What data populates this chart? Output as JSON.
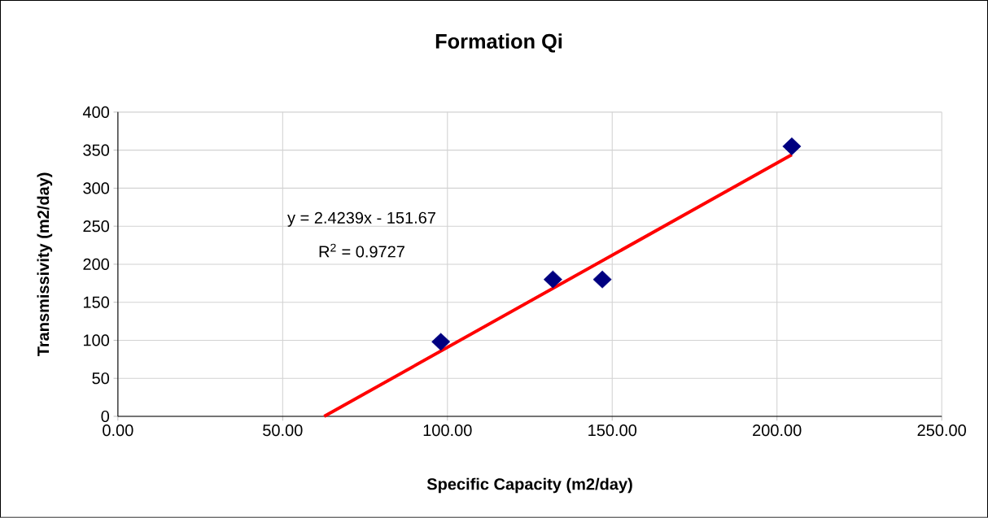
{
  "chart_data": {
    "type": "scatter",
    "title": "Formation Qi",
    "xlabel": "Specific Capacity (m2/day)",
    "ylabel": "Transmissivity (m2/day)",
    "xlim": [
      0,
      250
    ],
    "ylim": [
      0,
      400
    ],
    "xticks": [
      {
        "value": 0,
        "label": "0.00"
      },
      {
        "value": 50,
        "label": "50.00"
      },
      {
        "value": 100,
        "label": "100.00"
      },
      {
        "value": 150,
        "label": "150.00"
      },
      {
        "value": 200,
        "label": "200.00"
      },
      {
        "value": 250,
        "label": "250.00"
      }
    ],
    "yticks": [
      0,
      50,
      100,
      150,
      200,
      250,
      300,
      350,
      400
    ],
    "grid": true,
    "series": [
      {
        "color": "#000080",
        "marker": "diamond",
        "x": [
          98,
          132,
          147,
          204.5
        ],
        "values": [
          98,
          180,
          180,
          355
        ]
      },
      {
        "type": "line",
        "color": "#ff0000",
        "marker": "none",
        "line_style": "solid",
        "x": [
          62.6,
          204.5
        ],
        "values": [
          0,
          344
        ]
      }
    ],
    "annotations": [
      "y = 2.4239x - 151.67",
      "R$^{2}$ = 0.9727"
    ]
  }
}
